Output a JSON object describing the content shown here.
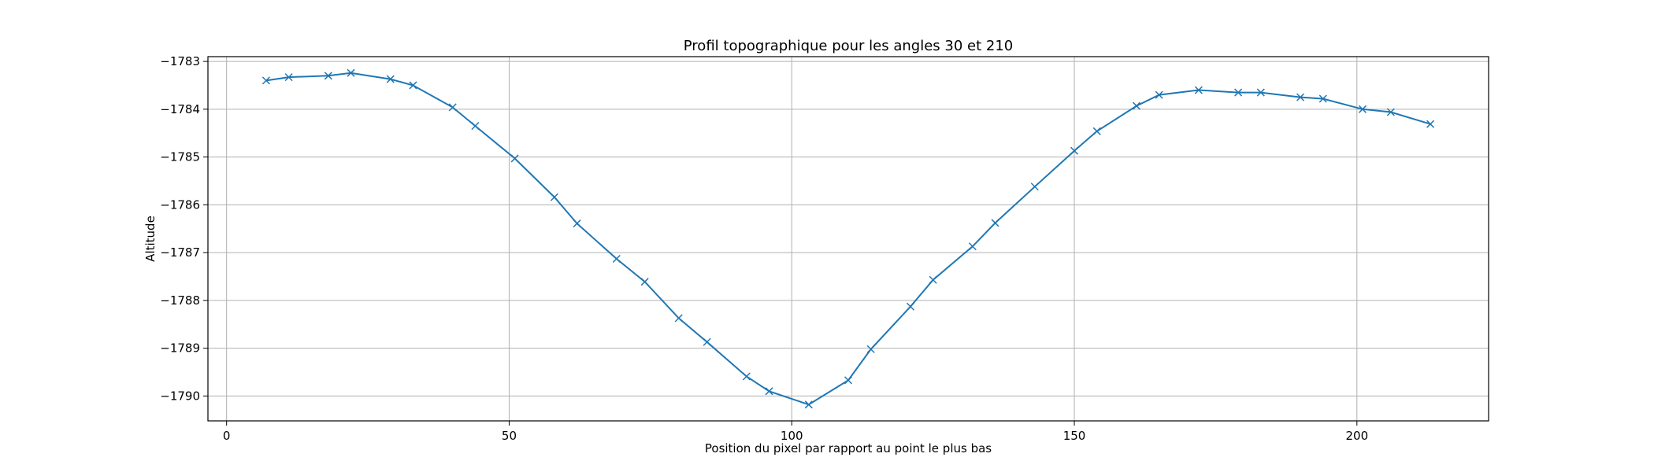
{
  "chart_data": {
    "type": "line",
    "title": "Profil topographique pour les angles 30 et 210",
    "xlabel": "Position du pixel par rapport au point le plus bas",
    "ylabel": "Altitude",
    "xlim": [
      -3.3,
      223.3
    ],
    "ylim": [
      -1790.52,
      -1782.9
    ],
    "xticks": [
      0,
      50,
      100,
      150,
      200
    ],
    "yticks": [
      -1783,
      -1784,
      -1785,
      -1786,
      -1787,
      -1788,
      -1789,
      -1790
    ],
    "grid": true,
    "marker": "x",
    "color": "#1f77b4",
    "series": [
      {
        "x": [
          7,
          11,
          18,
          22,
          29,
          33,
          40,
          44,
          51,
          58,
          62,
          69,
          74,
          80,
          85,
          92,
          96,
          103,
          110,
          114,
          121,
          125,
          132,
          136,
          143,
          150,
          154,
          161,
          165,
          172,
          179,
          183,
          190,
          194,
          201,
          206,
          213
        ],
        "y": [
          -1783.4,
          -1783.33,
          -1783.3,
          -1783.24,
          -1783.37,
          -1783.5,
          -1783.96,
          -1784.35,
          -1785.03,
          -1785.84,
          -1786.39,
          -1787.13,
          -1787.61,
          -1788.37,
          -1788.87,
          -1789.59,
          -1789.9,
          -1790.18,
          -1789.67,
          -1789.02,
          -1788.13,
          -1787.57,
          -1786.87,
          -1786.38,
          -1785.62,
          -1784.87,
          -1784.46,
          -1783.93,
          -1783.7,
          -1783.6,
          -1783.65,
          -1783.65,
          -1783.75,
          -1783.78,
          -1784.0,
          -1784.06,
          -1784.31
        ]
      }
    ]
  }
}
